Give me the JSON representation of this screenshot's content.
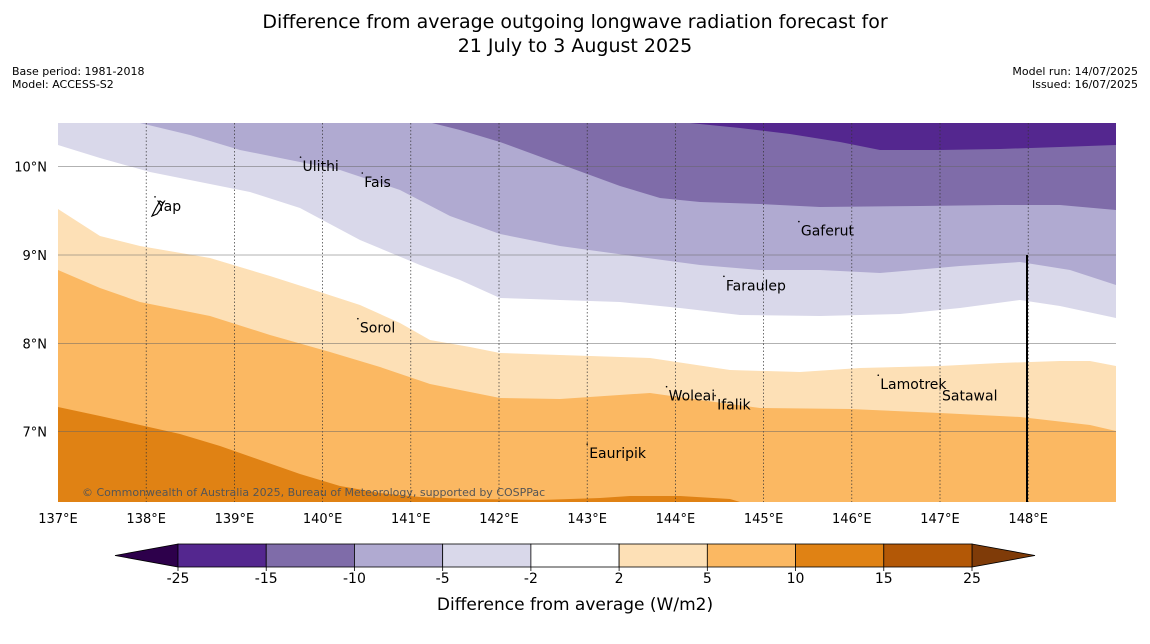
{
  "header": {
    "title_line1": "Difference from average outgoing longwave radiation forecast for",
    "title_line2": "21 July to 3 August 2025",
    "base_period": "Base period: 1981-2018",
    "model": "Model: ACCESS-S2",
    "model_run": "Model run: 14/07/2025",
    "issued": "Issued: 16/07/2025"
  },
  "map": {
    "lon_ticks": [
      "137°E",
      "138°E",
      "139°E",
      "140°E",
      "141°E",
      "142°E",
      "143°E",
      "144°E",
      "145°E",
      "146°E",
      "147°E",
      "148°E"
    ],
    "lat_ticks": [
      "10°N",
      "9°N",
      "8°N",
      "7°N"
    ],
    "places": [
      {
        "name": "Ulithi",
        "lon": 139.75,
        "lat": 9.95
      },
      {
        "name": "Fais",
        "lon": 140.45,
        "lat": 9.77
      },
      {
        "name": "Yap",
        "lon": 138.1,
        "lat": 9.5
      },
      {
        "name": "Gaferut",
        "lon": 145.4,
        "lat": 9.22
      },
      {
        "name": "Faraulep",
        "lon": 144.55,
        "lat": 8.6
      },
      {
        "name": "Sorol",
        "lon": 140.4,
        "lat": 8.12
      },
      {
        "name": "Lamotrek",
        "lon": 146.3,
        "lat": 7.48
      },
      {
        "name": "Woleai",
        "lon": 143.9,
        "lat": 7.35
      },
      {
        "name": "Ifalik",
        "lon": 144.45,
        "lat": 7.25
      },
      {
        "name": "Satawal",
        "lon": 147.0,
        "lat": 7.35
      },
      {
        "name": "Eauripik",
        "lon": 143.0,
        "lat": 6.7
      }
    ],
    "copyright": "© Commonwealth of Australia 2025, Bureau of Meteorology, supported by COSPPac"
  },
  "colorbar": {
    "ticks": [
      "-25",
      "-15",
      "-10",
      "-5",
      "-2",
      "2",
      "5",
      "10",
      "15",
      "25"
    ],
    "colors": [
      "#54278f",
      "#7f6ca9",
      "#b0aad1",
      "#d9d8ea",
      "#ffffff",
      "#fde0b6",
      "#fbb862",
      "#e08214",
      "#b35806"
    ],
    "low_extend": "#2d004b",
    "high_extend": "#7f3b08",
    "label": "Difference from average (W/m2)"
  }
}
